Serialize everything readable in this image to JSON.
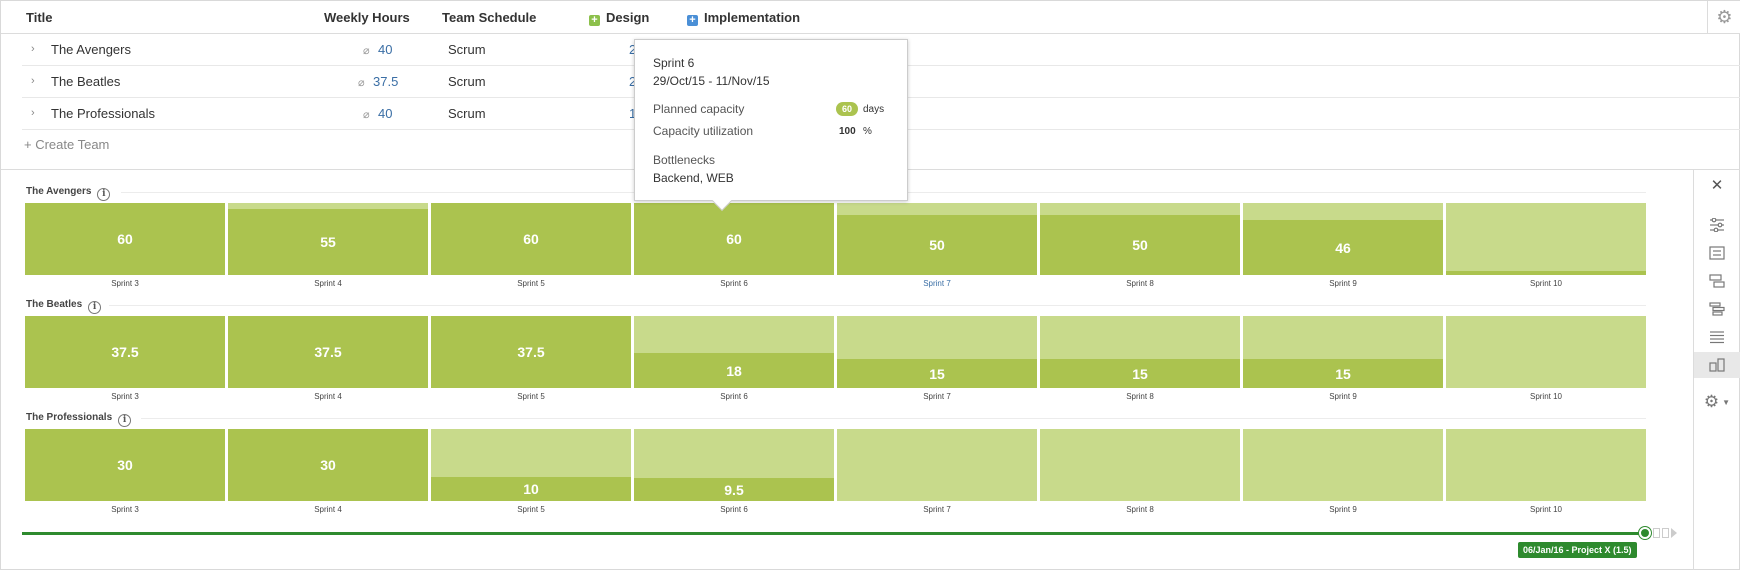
{
  "table": {
    "headers": {
      "title": "Title",
      "weekly_hours": "Weekly Hours",
      "team_schedule": "Team Schedule",
      "design": "Design",
      "implementation": "Implementation"
    },
    "legend_colors": {
      "design": "#8cc04b",
      "implementation": "#4a8fd6"
    },
    "rows": [
      {
        "name": "The Avengers",
        "avg_symbol": "⌀",
        "hours": "40",
        "schedule": "Scrum",
        "truncated": "2"
      },
      {
        "name": "The Beatles",
        "avg_symbol": "⌀",
        "hours": "37.5",
        "schedule": "Scrum",
        "truncated": "2"
      },
      {
        "name": "The Professionals",
        "avg_symbol": "⌀",
        "hours": "40",
        "schedule": "Scrum",
        "truncated": "1"
      }
    ],
    "create_team": "+ Create Team"
  },
  "capacity": {
    "colors": {
      "capacity": "#c8da8b",
      "planned": "#abc34f"
    },
    "teams": [
      {
        "name": "The Avengers",
        "sprints": [
          {
            "label": "Sprint 3",
            "value": "60",
            "fill": 1.0
          },
          {
            "label": "Sprint 4",
            "value": "55",
            "fill": 0.92
          },
          {
            "label": "Sprint 5",
            "value": "60",
            "fill": 1.0
          },
          {
            "label": "Sprint 6",
            "value": "60",
            "fill": 1.0
          },
          {
            "label": "Sprint 7",
            "value": "50",
            "fill": 0.83
          },
          {
            "label": "Sprint 8",
            "value": "50",
            "fill": 0.83
          },
          {
            "label": "Sprint 9",
            "value": "46",
            "fill": 0.77
          },
          {
            "label": "Sprint 10",
            "value": "",
            "fill": 0.06
          }
        ]
      },
      {
        "name": "The Beatles",
        "sprints": [
          {
            "label": "Sprint 3",
            "value": "37.5",
            "fill": 1.0
          },
          {
            "label": "Sprint 4",
            "value": "37.5",
            "fill": 1.0
          },
          {
            "label": "Sprint 5",
            "value": "37.5",
            "fill": 1.0
          },
          {
            "label": "Sprint 6",
            "value": "18",
            "fill": 0.48
          },
          {
            "label": "Sprint 7",
            "value": "15",
            "fill": 0.4
          },
          {
            "label": "Sprint 8",
            "value": "15",
            "fill": 0.4
          },
          {
            "label": "Sprint 9",
            "value": "15",
            "fill": 0.4
          },
          {
            "label": "Sprint 10",
            "value": "",
            "fill": 0
          }
        ]
      },
      {
        "name": "The Professionals",
        "sprints": [
          {
            "label": "Sprint 3",
            "value": "30",
            "fill": 1.0
          },
          {
            "label": "Sprint 4",
            "value": "30",
            "fill": 1.0
          },
          {
            "label": "Sprint 5",
            "value": "10",
            "fill": 0.33
          },
          {
            "label": "Sprint 6",
            "value": "9.5",
            "fill": 0.32
          },
          {
            "label": "Sprint 7",
            "value": "",
            "fill": 0
          },
          {
            "label": "Sprint 8",
            "value": "",
            "fill": 0
          },
          {
            "label": "Sprint 9",
            "value": "",
            "fill": 0
          },
          {
            "label": "Sprint 10",
            "value": "",
            "fill": 0
          }
        ]
      }
    ],
    "highlighted_sprint_label": "Sprint 7"
  },
  "tooltip": {
    "sprint": "Sprint 6",
    "dates": "29/Oct/15 - 11/Nov/15",
    "planned_capacity_label": "Planned capacity",
    "planned_capacity_value": "60",
    "planned_capacity_unit": "days",
    "utilization_label": "Capacity utilization",
    "utilization_value": "100",
    "utilization_unit": "%",
    "bottlenecks_label": "Bottlenecks",
    "bottlenecks_value": "Backend, WEB"
  },
  "timeline": {
    "badge": "06/Jan/16 - Project X (1.5)",
    "color": "#2e8a2e"
  },
  "toolbar": {
    "close": "✕",
    "icons": [
      "sliders-icon",
      "list-view-icon",
      "hierarchy-icon",
      "tree-icon",
      "rows-icon",
      "capacity-view-icon",
      "settings-icon"
    ]
  }
}
